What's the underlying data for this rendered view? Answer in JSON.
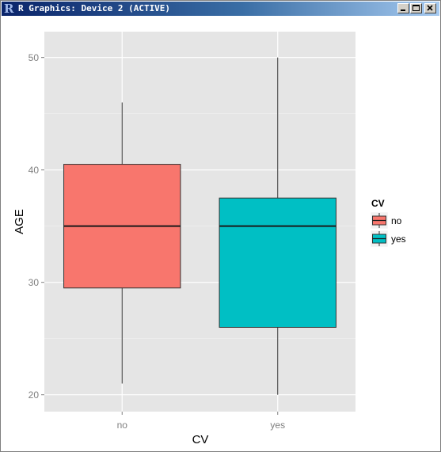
{
  "window": {
    "title": "R Graphics: Device 2 (ACTIVE)",
    "logo": "R"
  },
  "chart_data": {
    "type": "boxplot",
    "xlabel": "CV",
    "ylabel": "AGE",
    "ylim": [
      18.5,
      52.3
    ],
    "yticks": [
      20,
      30,
      40,
      50
    ],
    "categories": [
      "no",
      "yes"
    ],
    "grid": true,
    "background": "#e5e5e5",
    "legend": {
      "title": "CV",
      "position": "right",
      "entries": [
        {
          "label": "no",
          "color": "#f8766d"
        },
        {
          "label": "yes",
          "color": "#00bfc4"
        }
      ]
    },
    "boxes": [
      {
        "category": "no",
        "min": 21,
        "q1": 29.5,
        "median": 35,
        "q3": 40.5,
        "max": 46,
        "color": "#f8766d"
      },
      {
        "category": "yes",
        "min": 20,
        "q1": 26,
        "median": 35,
        "q3": 37.5,
        "max": 50,
        "color": "#00bfc4"
      }
    ]
  }
}
